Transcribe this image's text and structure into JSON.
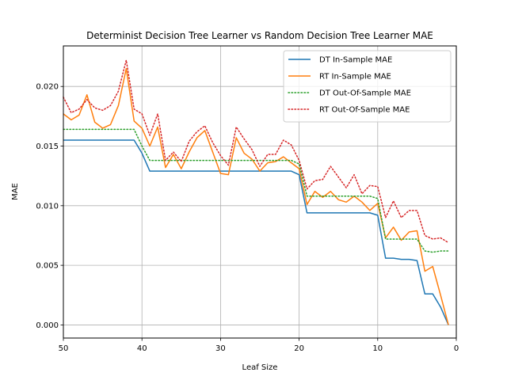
{
  "chart_data": {
    "type": "line",
    "title": "Determinist Decision Tree Learner vs Random Decision Tree Learner MAE",
    "xlabel": "Leaf Size",
    "ylabel": "MAE",
    "xlim": [
      50,
      0
    ],
    "ylim": [
      -0.0011,
      0.0234
    ],
    "x_ticks": [
      50,
      40,
      30,
      20,
      10,
      0
    ],
    "y_ticks": [
      0.0,
      0.005,
      0.01,
      0.015,
      0.02
    ],
    "y_tick_labels": [
      "0.000",
      "0.005",
      "0.010",
      "0.015",
      "0.020"
    ],
    "grid": true,
    "legend_position": "top-right",
    "x": [
      50,
      49,
      48,
      47,
      46,
      45,
      44,
      43,
      42,
      41,
      40,
      39,
      38,
      37,
      36,
      35,
      34,
      33,
      32,
      31,
      30,
      29,
      28,
      27,
      26,
      25,
      24,
      23,
      22,
      21,
      20,
      19,
      18,
      17,
      16,
      15,
      14,
      13,
      12,
      11,
      10,
      9,
      8,
      7,
      6,
      5,
      4,
      3,
      2,
      1
    ],
    "series": [
      {
        "name": "DT In-Sample MAE",
        "color": "#1f77b4",
        "style": "solid",
        "values": [
          0.0155,
          0.0155,
          0.0155,
          0.0155,
          0.0155,
          0.0155,
          0.0155,
          0.0155,
          0.0155,
          0.0155,
          0.0144,
          0.0129,
          0.0129,
          0.0129,
          0.0129,
          0.0129,
          0.0129,
          0.0129,
          0.0129,
          0.0129,
          0.0129,
          0.0129,
          0.0129,
          0.0129,
          0.0129,
          0.0129,
          0.0129,
          0.0129,
          0.0129,
          0.0129,
          0.0126,
          0.0094,
          0.0094,
          0.0094,
          0.0094,
          0.0094,
          0.0094,
          0.0094,
          0.0094,
          0.0094,
          0.0092,
          0.0056,
          0.0056,
          0.0055,
          0.0055,
          0.0054,
          0.0026,
          0.0026,
          0.0015,
          0.0
        ]
      },
      {
        "name": "RT In-Sample MAE",
        "color": "#ff7f0e",
        "style": "solid",
        "values": [
          0.0177,
          0.0172,
          0.0176,
          0.0193,
          0.017,
          0.0165,
          0.0168,
          0.0184,
          0.0215,
          0.0171,
          0.0165,
          0.015,
          0.0166,
          0.0132,
          0.0143,
          0.0131,
          0.0145,
          0.0157,
          0.0163,
          0.0145,
          0.0127,
          0.0126,
          0.0157,
          0.0144,
          0.0139,
          0.0129,
          0.0136,
          0.0137,
          0.0141,
          0.0136,
          0.0131,
          0.0101,
          0.0112,
          0.0107,
          0.0112,
          0.0105,
          0.0103,
          0.0108,
          0.0103,
          0.0096,
          0.0102,
          0.0073,
          0.0082,
          0.0071,
          0.0078,
          0.0079,
          0.0045,
          0.0049,
          0.0025,
          0.0
        ]
      },
      {
        "name": "DT Out-Of-Sample MAE",
        "color": "#2ca02c",
        "style": "dotted",
        "values": [
          0.0164,
          0.0164,
          0.0164,
          0.0164,
          0.0164,
          0.0164,
          0.0164,
          0.0164,
          0.0164,
          0.0164,
          0.015,
          0.0138,
          0.0138,
          0.0138,
          0.0138,
          0.0138,
          0.0138,
          0.0138,
          0.0138,
          0.0138,
          0.0138,
          0.0138,
          0.0138,
          0.0138,
          0.0138,
          0.0138,
          0.0138,
          0.0138,
          0.0138,
          0.0138,
          0.0135,
          0.0108,
          0.0108,
          0.0108,
          0.0108,
          0.0108,
          0.0108,
          0.0108,
          0.0108,
          0.0108,
          0.0106,
          0.0072,
          0.0072,
          0.0072,
          0.0072,
          0.0072,
          0.0062,
          0.0061,
          0.0062,
          0.0062
        ]
      },
      {
        "name": "RT Out-Of-Sample MAE",
        "color": "#d62728",
        "style": "dotted",
        "values": [
          0.0191,
          0.0178,
          0.0181,
          0.0189,
          0.0182,
          0.018,
          0.0184,
          0.0196,
          0.0222,
          0.0181,
          0.0177,
          0.0159,
          0.0177,
          0.0138,
          0.0145,
          0.0137,
          0.0154,
          0.0162,
          0.0167,
          0.0153,
          0.0142,
          0.0134,
          0.0166,
          0.0156,
          0.0147,
          0.0133,
          0.0143,
          0.0143,
          0.0155,
          0.0151,
          0.0138,
          0.0114,
          0.0121,
          0.0122,
          0.0133,
          0.0124,
          0.0115,
          0.0126,
          0.011,
          0.0117,
          0.0116,
          0.009,
          0.0104,
          0.009,
          0.0096,
          0.0096,
          0.0075,
          0.0072,
          0.0073,
          0.0069
        ]
      }
    ]
  }
}
